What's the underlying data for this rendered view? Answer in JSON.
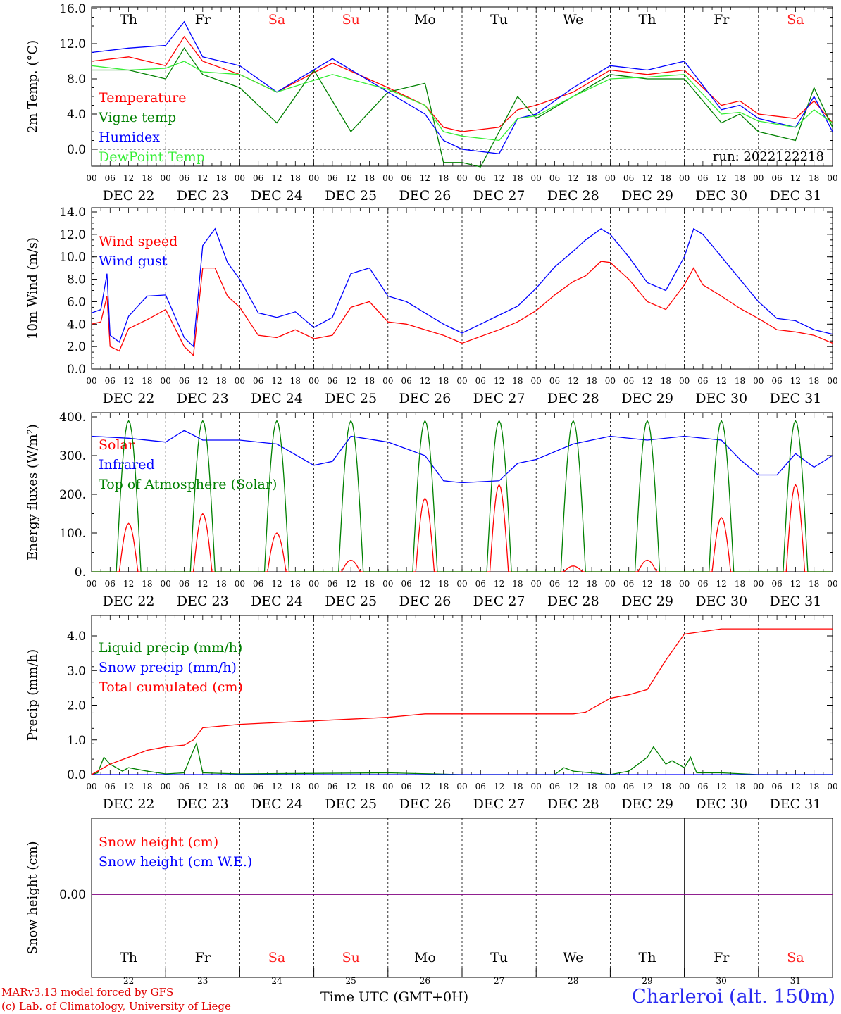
{
  "chart_data": [
    {
      "type": "line",
      "ylabel": "2m Temp. (°C)",
      "ylim": [
        -2,
        16
      ],
      "yticks": [
        "16.0",
        "12.0",
        "8.0",
        "4.0",
        "0.0"
      ],
      "annotation": "run: 2022122218",
      "series": [
        {
          "name": "Temperature",
          "color": "#ff0000",
          "x": [
            0,
            12,
            24,
            30,
            36,
            48,
            60,
            78,
            96,
            108,
            114,
            120,
            132,
            138,
            144,
            156,
            168,
            180,
            192,
            204,
            210,
            216,
            228,
            234,
            240
          ],
          "values": [
            10,
            10.5,
            9.5,
            12.8,
            10,
            8.5,
            6.5,
            9.8,
            7,
            5,
            2.5,
            2,
            2.5,
            4.5,
            5,
            6.5,
            9,
            8.5,
            9,
            5,
            5.5,
            4,
            3.5,
            5.5,
            3
          ]
        },
        {
          "name": "Vigne temp",
          "color": "#008000",
          "x": [
            0,
            12,
            24,
            30,
            36,
            48,
            60,
            72,
            84,
            96,
            108,
            114,
            120,
            126,
            132,
            138,
            144,
            156,
            168,
            180,
            192,
            204,
            210,
            216,
            228,
            234,
            240
          ],
          "values": [
            9,
            9,
            8,
            11.5,
            8.5,
            7,
            3,
            9,
            2,
            6.5,
            7.5,
            -1.5,
            -1.5,
            -2,
            2,
            6,
            3.5,
            6,
            8.5,
            8,
            8,
            3,
            4,
            2,
            1,
            7,
            2.5
          ]
        },
        {
          "name": "Humidex",
          "color": "#0000ff",
          "x": [
            0,
            12,
            24,
            30,
            36,
            48,
            60,
            78,
            96,
            108,
            114,
            120,
            132,
            138,
            144,
            156,
            168,
            180,
            192,
            204,
            210,
            216,
            228,
            234,
            240
          ],
          "values": [
            11,
            11.5,
            11.8,
            14.5,
            10.5,
            9.5,
            6.5,
            10.3,
            6.5,
            4,
            1,
            0,
            -0.5,
            3.5,
            4,
            7,
            9.5,
            9,
            10,
            4.5,
            5,
            3.5,
            2.5,
            6,
            2
          ]
        },
        {
          "name": "DewPoint Temp",
          "color": "#33ee33",
          "x": [
            0,
            12,
            24,
            30,
            36,
            48,
            60,
            78,
            96,
            108,
            114,
            120,
            132,
            138,
            144,
            156,
            168,
            180,
            192,
            204,
            210,
            216,
            228,
            234,
            240
          ],
          "values": [
            9.5,
            9,
            9.2,
            10,
            8.8,
            8.5,
            6.5,
            8.5,
            6.8,
            5,
            2,
            1.5,
            1,
            3.5,
            3.8,
            6,
            8,
            8.2,
            8.5,
            4,
            4.2,
            3.2,
            2.5,
            4.5,
            3
          ]
        }
      ]
    },
    {
      "type": "line",
      "ylabel": "10m Wind (m/s)",
      "ylim": [
        0,
        14
      ],
      "yticks": [
        "14.0",
        "12.0",
        "10.0",
        "8.0",
        "6.0",
        "4.0",
        "2.0",
        "0.0"
      ],
      "series": [
        {
          "name": "Wind speed",
          "color": "#ff0000",
          "x": [
            0,
            3,
            5,
            6,
            9,
            12,
            18,
            24,
            30,
            33,
            36,
            40,
            44,
            48,
            54,
            60,
            66,
            72,
            78,
            84,
            90,
            96,
            102,
            108,
            114,
            120,
            126,
            132,
            138,
            144,
            150,
            156,
            160,
            165,
            168,
            174,
            180,
            186,
            192,
            195,
            198,
            204,
            210,
            216,
            222,
            228,
            234,
            240
          ],
          "values": [
            4,
            4.2,
            6.5,
            2,
            1.6,
            3.6,
            4.4,
            5.3,
            2,
            1.2,
            9,
            9,
            6.5,
            5.5,
            3,
            2.8,
            3.5,
            2.7,
            3,
            5.5,
            6,
            4.2,
            4,
            3.5,
            3,
            2.3,
            2.9,
            3.5,
            4.2,
            5.2,
            6.6,
            7.8,
            8.3,
            9.6,
            9.5,
            8,
            6,
            5.3,
            7.5,
            9,
            7.5,
            6.5,
            5.4,
            4.5,
            3.5,
            3.3,
            3,
            2.3
          ]
        },
        {
          "name": "Wind gust",
          "color": "#0000ff",
          "x": [
            0,
            3,
            5,
            6,
            9,
            12,
            18,
            24,
            30,
            33,
            36,
            40,
            44,
            48,
            54,
            60,
            66,
            72,
            78,
            84,
            90,
            96,
            102,
            108,
            114,
            120,
            126,
            132,
            138,
            144,
            150,
            156,
            160,
            165,
            168,
            174,
            180,
            186,
            192,
            195,
            198,
            204,
            210,
            216,
            222,
            228,
            234,
            240
          ],
          "values": [
            5,
            5.3,
            8.5,
            3,
            2.4,
            4.7,
            6.5,
            6.6,
            2.8,
            2,
            11,
            12.5,
            9.5,
            8,
            5,
            4.6,
            5.1,
            3.7,
            4.6,
            8.5,
            9,
            6.5,
            6,
            5,
            4,
            3.2,
            4,
            4.8,
            5.6,
            7.2,
            9.1,
            10.5,
            11.5,
            12.5,
            12,
            10,
            7.7,
            7,
            10,
            12.5,
            12,
            10,
            8,
            6,
            4.5,
            4.3,
            3.5,
            3.1
          ]
        }
      ]
    },
    {
      "type": "line",
      "ylabel": "Energy fluxes (W/m²)",
      "ylim": [
        0,
        400
      ],
      "yticks": [
        "400.",
        "300.",
        "200.",
        "100.",
        "0."
      ],
      "series": [
        {
          "name": "Solar",
          "color": "#ff0000",
          "peaks": [
            125,
            150,
            100,
            30,
            190,
            225,
            15,
            30,
            140,
            225
          ]
        },
        {
          "name": "Infrared",
          "color": "#0000ff",
          "x": [
            0,
            12,
            24,
            30,
            36,
            48,
            60,
            72,
            78,
            84,
            96,
            108,
            114,
            120,
            132,
            138,
            144,
            156,
            168,
            180,
            192,
            204,
            210,
            216,
            222,
            228,
            234,
            240
          ],
          "values": [
            350,
            345,
            335,
            365,
            340,
            340,
            330,
            275,
            285,
            350,
            335,
            300,
            235,
            230,
            235,
            280,
            290,
            330,
            350,
            340,
            350,
            340,
            290,
            250,
            250,
            305,
            270,
            300
          ]
        },
        {
          "name": "Top of Atmosphere (Solar)",
          "color": "#008000",
          "peak": 390,
          "sunrise_h": 8,
          "sunset_h": 16
        }
      ]
    },
    {
      "type": "line",
      "ylabel": "Precip (mm/h)",
      "ylim": [
        0,
        4.5
      ],
      "yticks": [
        "4.0",
        "3.0",
        "2.0",
        "1.0",
        "0.0"
      ],
      "series": [
        {
          "name": "Liquid precip (mm/h)",
          "color": "#008000",
          "x": [
            0,
            2,
            4,
            6,
            8,
            10,
            12,
            18,
            24,
            30,
            33,
            34,
            36,
            48,
            96,
            120,
            150,
            153,
            156,
            168,
            174,
            180,
            182,
            186,
            188,
            192,
            194,
            196,
            204,
            216,
            240
          ],
          "values": [
            0,
            0.05,
            0.5,
            0.3,
            0.2,
            0.1,
            0.2,
            0.1,
            0.02,
            0.05,
            0.7,
            0.9,
            0.05,
            0.02,
            0.05,
            0,
            0,
            0.2,
            0.1,
            0,
            0.1,
            0.5,
            0.8,
            0.3,
            0.4,
            0.2,
            0.5,
            0.05,
            0.05,
            0,
            0
          ]
        },
        {
          "name": "Snow precip (mm/h)",
          "color": "#0000ff",
          "x": [
            0,
            240
          ],
          "values": [
            0,
            0
          ]
        },
        {
          "name": "Total cumulated (cm)",
          "color": "#ff0000",
          "x": [
            0,
            6,
            12,
            18,
            24,
            30,
            33,
            36,
            48,
            60,
            72,
            84,
            96,
            108,
            120,
            132,
            144,
            156,
            160,
            168,
            174,
            180,
            186,
            192,
            204,
            216,
            228,
            240
          ],
          "values": [
            0,
            0.3,
            0.5,
            0.7,
            0.8,
            0.85,
            1.0,
            1.35,
            1.45,
            1.5,
            1.55,
            1.6,
            1.65,
            1.75,
            1.75,
            1.75,
            1.75,
            1.75,
            1.8,
            2.2,
            2.3,
            2.45,
            3.3,
            4.05,
            4.2,
            4.2,
            4.2,
            4.2
          ]
        }
      ]
    },
    {
      "type": "line",
      "ylabel": "Snow height (cm)",
      "yticks": [
        "0.00"
      ],
      "series": [
        {
          "name": "Snow height (cm)",
          "color": "#ff0000",
          "x": [
            0,
            240
          ],
          "values": [
            0,
            0
          ]
        },
        {
          "name": "Snow height (cm W.E.)",
          "color": "#0000ff",
          "x": [
            0,
            240
          ],
          "values": [
            0,
            0
          ]
        }
      ]
    }
  ],
  "x_axis": {
    "hour_ticks": [
      "00",
      "06",
      "12",
      "18"
    ],
    "date_labels": [
      "DEC 22",
      "DEC 23",
      "DEC 24",
      "DEC 25",
      "DEC 26",
      "DEC 27",
      "DEC 28",
      "DEC 29",
      "DEC 30",
      "DEC 31"
    ],
    "day_numbers": [
      "22",
      "23",
      "24",
      "25",
      "26",
      "27",
      "28",
      "29",
      "30",
      "31"
    ],
    "weekdays": [
      "Th",
      "Fr",
      "Sa",
      "Su",
      "Mo",
      "Tu",
      "We",
      "Th",
      "Fr",
      "Sa"
    ],
    "weekend_color": "#ff2020",
    "weekday_color": "#000000"
  },
  "footer": {
    "credit_line1": "MARv3.13 model forced by GFS",
    "credit_line2": "(c) Lab. of Climatology, University of Liege",
    "time_label": "Time UTC (GMT+0H)",
    "station": "Charleroi (alt. 150m)"
  }
}
